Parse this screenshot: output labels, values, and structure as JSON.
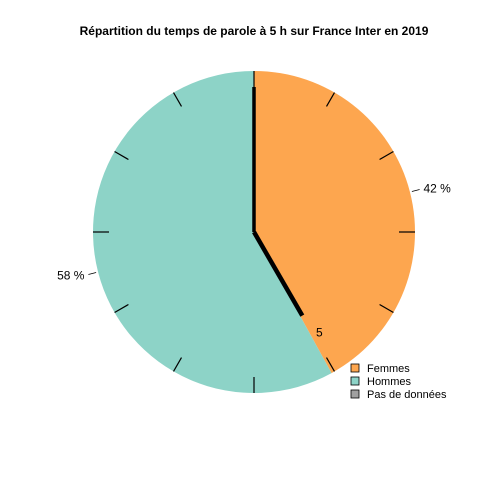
{
  "chart_data": {
    "type": "pie",
    "title": "Répartition du temps de parole à 5 h sur France Inter en 2019",
    "slices": [
      {
        "name": "Femmes",
        "value": 42,
        "label": "42 %",
        "color": "#FDA64F"
      },
      {
        "name": "Hommes",
        "value": 58,
        "label": "58 %",
        "color": "#8DD3C7"
      }
    ],
    "legend": {
      "placement": "bottom-right",
      "entries": [
        {
          "name": "Femmes",
          "color": "#FDA64F"
        },
        {
          "name": "Hommes",
          "color": "#8DD3C7"
        },
        {
          "name": "Pas de données",
          "color": "#A0A0A0"
        }
      ]
    },
    "clock": {
      "hour_ticks": 12,
      "hand_label": "5",
      "hand_hour": 5
    }
  }
}
